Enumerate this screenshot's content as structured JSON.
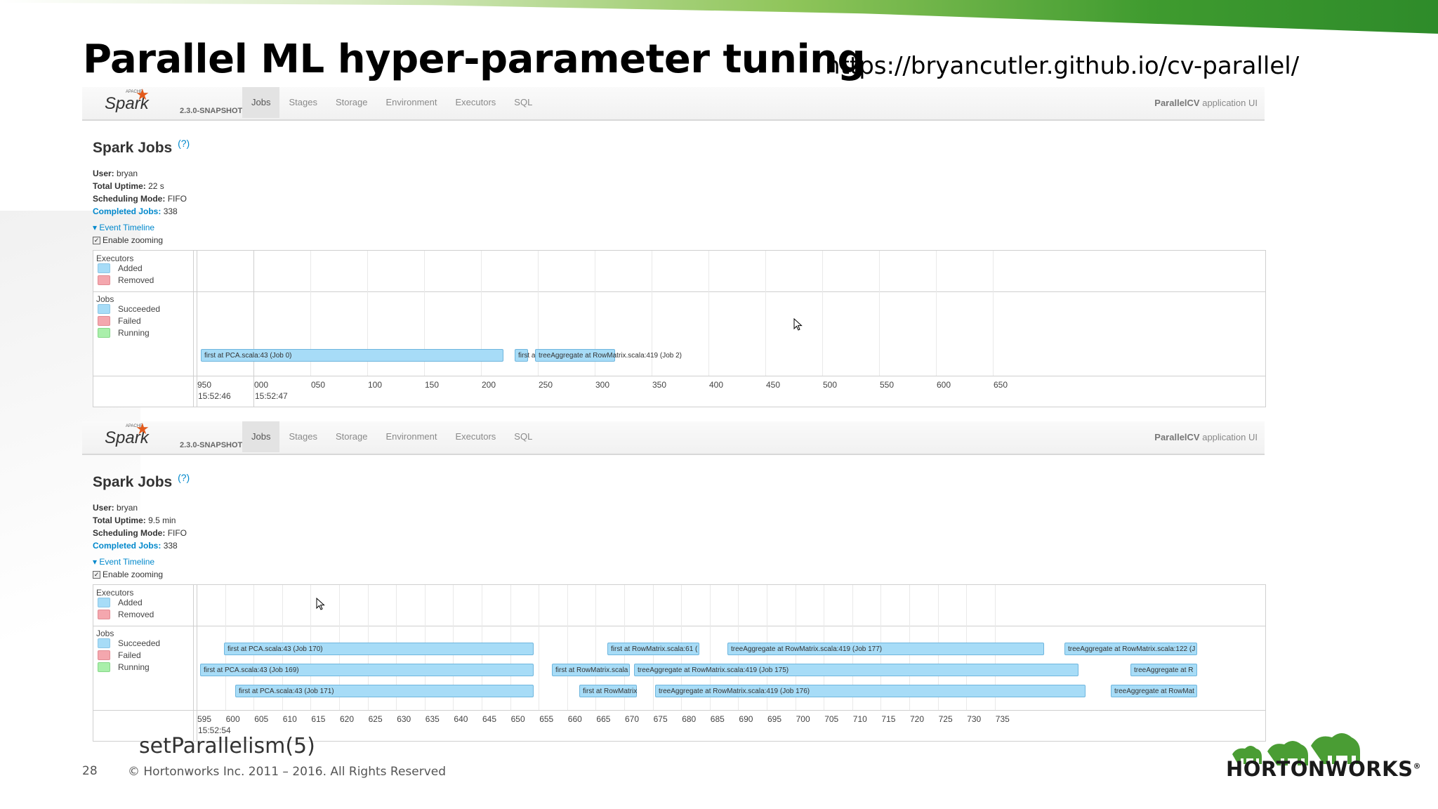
{
  "slide": {
    "title": "Parallel ML hyper-parameter tuning",
    "url": "https://bryancutler.github.io/cv-parallel/",
    "page_number": "28",
    "copyright": "© Hortonworks Inc. 2011 – 2016. All Rights Reserved",
    "obscured_text": "setParallelism(5)",
    "brand": "HORTONWORKS",
    "brand_mark": "®"
  },
  "spark": {
    "logo_word": "Spark",
    "logo_apache": "APACHE",
    "version": "2.3.0-SNAPSHOT",
    "tabs": [
      "Jobs",
      "Stages",
      "Storage",
      "Environment",
      "Executors",
      "SQL"
    ],
    "active_tab": "Jobs",
    "app_name_bold": "ParallelCV",
    "app_name_rest": " application UI",
    "page_heading": "Spark Jobs",
    "help": "(?)",
    "labels": {
      "user": "User:",
      "uptime": "Total Uptime:",
      "scheduling": "Scheduling Mode:",
      "completed": "Completed Jobs:"
    },
    "event_timeline": "Event Timeline",
    "enable_zooming": "Enable zooming",
    "legend": {
      "executors_heading": "Executors",
      "added": "Added",
      "removed": "Removed",
      "jobs_heading": "Jobs",
      "succeeded": "Succeeded",
      "failed": "Failed",
      "running": "Running"
    }
  },
  "panels": [
    {
      "user": "bryan",
      "uptime": "22 s",
      "scheduling": "FIFO",
      "completed": "338",
      "axis": {
        "ticks": [
          "950",
          "000",
          "050",
          "100",
          "150",
          "200",
          "250",
          "300",
          "350",
          "400",
          "450",
          "500",
          "550",
          "600",
          "650"
        ],
        "major_labels": [
          {
            "tick_index": 0,
            "text": "15:52:46"
          },
          {
            "tick_index": 1,
            "text": "15:52:47"
          }
        ]
      },
      "jobs": [
        {
          "label": "first at PCA.scala:43 (Job 0)",
          "start": 0.6,
          "end": 43.7,
          "row": 0
        },
        {
          "label": "first at",
          "start": 45.3,
          "end": 47.2,
          "row": 0
        },
        {
          "label": "treeAggregate at RowMatrix.scala:419 (Job 2)",
          "start": 48.2,
          "end": 59.6,
          "row": 0
        }
      ]
    },
    {
      "user": "bryan",
      "uptime": "9.5 min",
      "scheduling": "FIFO",
      "completed": "338",
      "axis": {
        "ticks": [
          "595",
          "600",
          "605",
          "610",
          "615",
          "620",
          "625",
          "630",
          "635",
          "640",
          "645",
          "650",
          "655",
          "660",
          "665",
          "670",
          "675",
          "680",
          "685",
          "690",
          "695",
          "700",
          "705",
          "710",
          "715",
          "720",
          "725",
          "730",
          "735"
        ],
        "major_labels": [
          {
            "tick_index": 0,
            "text": "15:52:54"
          }
        ]
      },
      "jobs": [
        {
          "label": "first at PCA.scala:43 (Job 170)",
          "start": 3.9,
          "end": 48.0,
          "row": 0
        },
        {
          "label": "first at RowMatrix.scala:61 (",
          "start": 58.5,
          "end": 71.6,
          "row": 0
        },
        {
          "label": "treeAggregate at RowMatrix.scala:419 (Job 177)",
          "start": 75.6,
          "end": 120.7,
          "row": 0
        },
        {
          "label": "treeAggregate at RowMatrix.scala:122 (J",
          "start": 123.6,
          "end": 142.5,
          "row": 0
        },
        {
          "label": "first at PCA.scala:43 (Job 169)",
          "start": 0.5,
          "end": 48.0,
          "row": 1
        },
        {
          "label": "first at RowMatrix.scala",
          "start": 50.6,
          "end": 61.7,
          "row": 1
        },
        {
          "label": "treeAggregate at RowMatrix.scala:419 (Job 175)",
          "start": 62.3,
          "end": 125.6,
          "row": 1
        },
        {
          "label": "treeAggregate at R",
          "start": 133.0,
          "end": 142.5,
          "row": 1
        },
        {
          "label": "first at PCA.scala:43 (Job 171)",
          "start": 5.5,
          "end": 48.0,
          "row": 2
        },
        {
          "label": "first at RowMatrix",
          "start": 54.5,
          "end": 62.7,
          "row": 2
        },
        {
          "label": "treeAggregate at RowMatrix.scala:419 (Job 176)",
          "start": 65.3,
          "end": 126.6,
          "row": 2
        },
        {
          "label": "treeAggregate at RowMat",
          "start": 130.2,
          "end": 142.5,
          "row": 2
        }
      ]
    }
  ],
  "colors": {
    "succeeded": "#a7dcf7",
    "failed": "#f4a7ae",
    "running": "#a9efaa",
    "link": "#0088cc"
  }
}
